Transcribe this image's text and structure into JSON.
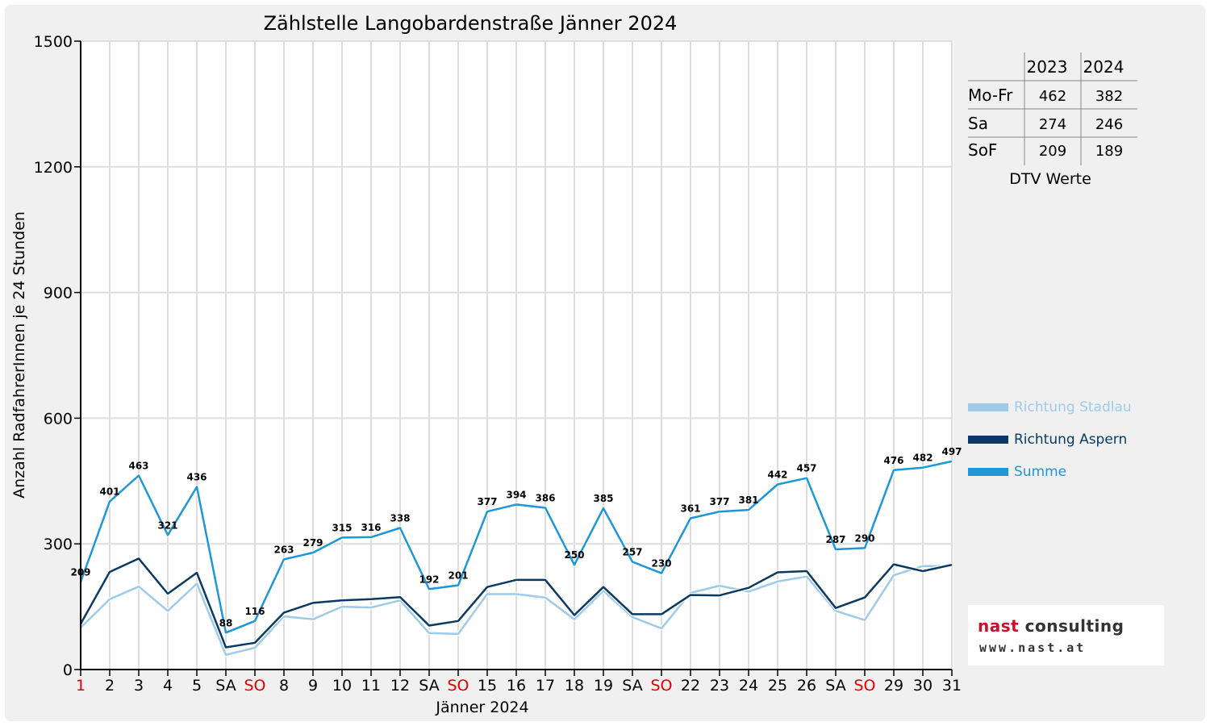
{
  "chart_data": {
    "type": "line",
    "title": "Zählstelle Langobardenstraße Jänner 2024",
    "xlabel": "Jänner 2024",
    "ylabel": "Anzahl RadfahrerInnen je 24 Stunden",
    "ylim": [
      0,
      1500
    ],
    "yticks": [
      "0",
      "300",
      "600",
      "900",
      "1200",
      "1500"
    ],
    "grid": true,
    "legend_position": "right",
    "categories": [
      "1",
      "2",
      "3",
      "4",
      "5",
      "SA",
      "SO",
      "8",
      "9",
      "10",
      "11",
      "12",
      "SA",
      "SO",
      "15",
      "16",
      "17",
      "18",
      "19",
      "SA",
      "SO",
      "22",
      "23",
      "24",
      "25",
      "26",
      "SA",
      "SO",
      "29",
      "30",
      "31"
    ],
    "category_colors": [
      "#e00000",
      "#000000",
      "#000000",
      "#000000",
      "#000000",
      "#000000",
      "#e00000",
      "#000000",
      "#000000",
      "#000000",
      "#000000",
      "#000000",
      "#000000",
      "#e00000",
      "#000000",
      "#000000",
      "#000000",
      "#000000",
      "#000000",
      "#000000",
      "#e00000",
      "#000000",
      "#000000",
      "#000000",
      "#000000",
      "#000000",
      "#000000",
      "#e00000",
      "#000000",
      "#000000",
      "#000000"
    ],
    "series": [
      {
        "name": "Richtung Stadlau",
        "color": "#9dcbe8",
        "values": [
          100,
          168,
          198,
          140,
          205,
          35,
          52,
          127,
          120,
          150,
          148,
          165,
          87,
          85,
          180,
          180,
          172,
          120,
          188,
          125,
          98,
          183,
          200,
          186,
          210,
          222,
          140,
          118,
          225,
          247,
          247
        ]
      },
      {
        "name": "Richtung Aspern",
        "color": "#0a3a64",
        "values": [
          109,
          233,
          265,
          181,
          231,
          53,
          64,
          136,
          159,
          165,
          168,
          173,
          105,
          116,
          197,
          214,
          214,
          130,
          197,
          132,
          132,
          178,
          177,
          195,
          232,
          235,
          147,
          172,
          251,
          235,
          250
        ]
      },
      {
        "name": "Summe",
        "color": "#1e97d6",
        "values": [
          209,
          401,
          463,
          321,
          436,
          88,
          116,
          263,
          279,
          315,
          316,
          338,
          192,
          201,
          377,
          394,
          386,
          250,
          385,
          257,
          230,
          361,
          377,
          381,
          442,
          457,
          287,
          290,
          476,
          482,
          497
        ],
        "data_labels": [
          "209",
          "401",
          "463",
          "321",
          "436",
          "88",
          "116",
          "263",
          "279",
          "315",
          "316",
          "338",
          "192",
          "201",
          "377",
          "394",
          "386",
          "250",
          "385",
          "257",
          "230",
          "361",
          "377",
          "381",
          "442",
          "457",
          "287",
          "290",
          "476",
          "482",
          "497"
        ]
      }
    ]
  },
  "dtv_table": {
    "caption": "DTV Werte",
    "headers": [
      "",
      "2023",
      "2024"
    ],
    "rows": [
      {
        "label": "Mo-Fr",
        "v2023": "462",
        "v2024": "382"
      },
      {
        "label": "Sa",
        "v2023": "274",
        "v2024": "246"
      },
      {
        "label": "SoF",
        "v2023": "209",
        "v2024": "189"
      }
    ]
  },
  "logo": {
    "brand_part1": "nast",
    "brand_part2": " consulting",
    "url": "www.nast.at"
  }
}
